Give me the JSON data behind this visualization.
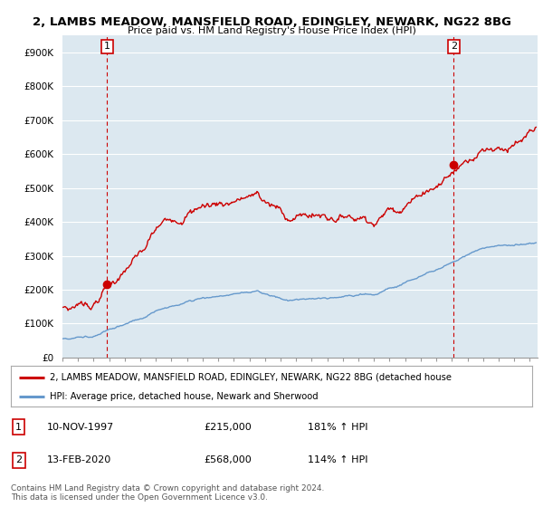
{
  "title": "2, LAMBS MEADOW, MANSFIELD ROAD, EDINGLEY, NEWARK, NG22 8BG",
  "subtitle": "Price paid vs. HM Land Registry's House Price Index (HPI)",
  "xlim_start": 1995.0,
  "xlim_end": 2025.5,
  "ylim": [
    0,
    950000
  ],
  "yticks": [
    0,
    100000,
    200000,
    300000,
    400000,
    500000,
    600000,
    700000,
    800000,
    900000
  ],
  "ytick_labels": [
    "£0",
    "£100K",
    "£200K",
    "£300K",
    "£400K",
    "£500K",
    "£600K",
    "£700K",
    "£800K",
    "£900K"
  ],
  "sale1_x": 1997.86,
  "sale1_y": 215000,
  "sale2_x": 2020.12,
  "sale2_y": 568000,
  "red_line_color": "#cc0000",
  "blue_line_color": "#6699cc",
  "vline_color": "#cc0000",
  "dot_color": "#cc0000",
  "chart_bg_color": "#dce8f0",
  "fig_bg_color": "#ffffff",
  "grid_color": "#ffffff",
  "legend_red_label": "2, LAMBS MEADOW, MANSFIELD ROAD, EDINGLEY, NEWARK, NG22 8BG (detached house",
  "legend_blue_label": "HPI: Average price, detached house, Newark and Sherwood",
  "footer": "Contains HM Land Registry data © Crown copyright and database right 2024.\nThis data is licensed under the Open Government Licence v3.0.",
  "xticks": [
    1995,
    1996,
    1997,
    1998,
    1999,
    2000,
    2001,
    2002,
    2003,
    2004,
    2005,
    2006,
    2007,
    2008,
    2009,
    2010,
    2011,
    2012,
    2013,
    2014,
    2015,
    2016,
    2017,
    2018,
    2019,
    2020,
    2021,
    2022,
    2023,
    2024,
    2025
  ]
}
